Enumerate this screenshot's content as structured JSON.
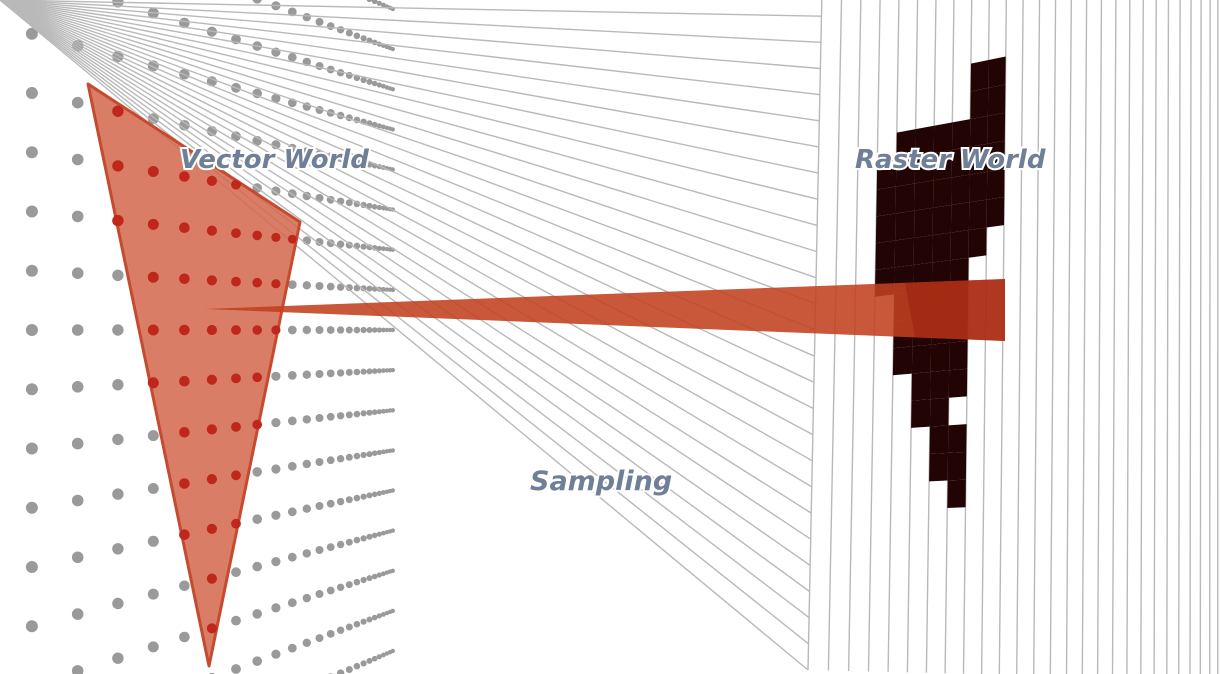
{
  "labels": {
    "vector_world": "Vector World",
    "raster_world": "Raster World",
    "sampling": "Sampling"
  },
  "colors": {
    "background": "#ffffff",
    "sample_dot": "#9a9a9a",
    "triangle_fill": "#d4664c",
    "triangle_stroke": "#c64a2f",
    "hit_dot": "#c0271c",
    "beam": "#c2401f",
    "grid_line": "#b9b9b9",
    "filled_pixel": "#230405",
    "label": "#6f7f97"
  },
  "raster": {
    "filled_cells": [
      [
        8,
        1
      ],
      [
        9,
        1
      ],
      [
        8,
        2
      ],
      [
        9,
        2
      ],
      [
        4,
        3
      ],
      [
        5,
        3
      ],
      [
        6,
        3
      ],
      [
        7,
        3
      ],
      [
        8,
        3
      ],
      [
        9,
        3
      ],
      [
        3,
        4
      ],
      [
        4,
        4
      ],
      [
        5,
        4
      ],
      [
        6,
        4
      ],
      [
        7,
        4
      ],
      [
        8,
        4
      ],
      [
        9,
        4
      ],
      [
        3,
        5
      ],
      [
        4,
        5
      ],
      [
        5,
        5
      ],
      [
        6,
        5
      ],
      [
        7,
        5
      ],
      [
        8,
        5
      ],
      [
        9,
        5
      ],
      [
        3,
        6
      ],
      [
        4,
        6
      ],
      [
        5,
        6
      ],
      [
        6,
        6
      ],
      [
        7,
        6
      ],
      [
        8,
        6
      ],
      [
        9,
        6
      ],
      [
        3,
        7
      ],
      [
        4,
        7
      ],
      [
        5,
        7
      ],
      [
        6,
        7
      ],
      [
        7,
        7
      ],
      [
        8,
        7
      ],
      [
        3,
        8
      ],
      [
        4,
        8
      ],
      [
        5,
        8
      ],
      [
        6,
        8
      ],
      [
        7,
        8
      ],
      [
        4,
        9
      ],
      [
        5,
        9
      ],
      [
        6,
        9
      ],
      [
        7,
        9
      ],
      [
        4,
        10
      ],
      [
        5,
        10
      ],
      [
        6,
        10
      ],
      [
        7,
        10
      ],
      [
        4,
        11
      ],
      [
        5,
        11
      ],
      [
        6,
        11
      ],
      [
        7,
        11
      ],
      [
        5,
        12
      ],
      [
        6,
        12
      ],
      [
        7,
        12
      ],
      [
        5,
        13
      ],
      [
        6,
        13
      ],
      [
        6,
        14
      ],
      [
        7,
        14
      ],
      [
        6,
        15
      ],
      [
        7,
        15
      ],
      [
        7,
        16
      ]
    ]
  }
}
